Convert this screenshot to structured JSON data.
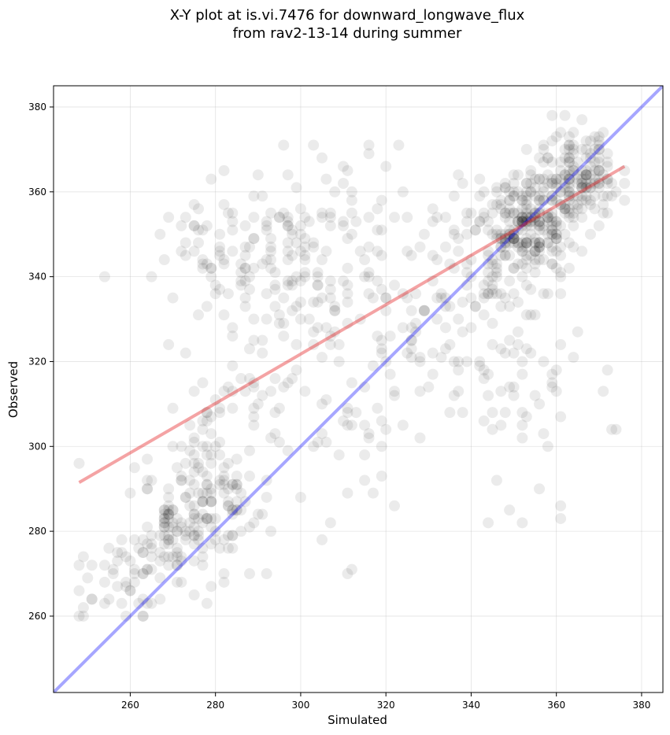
{
  "chart_data": {
    "type": "scatter",
    "title": "X-Y plot at is.vi.7476 for downward_longwave_flux",
    "subtitle": "from rav2-13-14 during summer",
    "xlabel": "Simulated",
    "ylabel": "Observed",
    "xlim": [
      242,
      385
    ],
    "ylim": [
      242,
      385
    ],
    "xticks": [
      260,
      280,
      300,
      320,
      340,
      360,
      380
    ],
    "yticks": [
      260,
      280,
      300,
      320,
      340,
      360,
      380
    ],
    "grid": true,
    "points_color": "#000000",
    "points_alpha": 0.08,
    "reference_line": {
      "color": "#0000ff",
      "alpha": 0.35,
      "from": [
        242,
        242
      ],
      "to": [
        385,
        385
      ]
    },
    "fit_line": {
      "color": "#e31a1c",
      "alpha": 0.4,
      "from": [
        248,
        291.5
      ],
      "to": [
        376,
        366
      ]
    },
    "point_clusters": [
      {
        "cx": 272,
        "cy": 280,
        "sx": 5,
        "sy": 6,
        "n": 110
      },
      {
        "cx": 280,
        "cy": 292,
        "sx": 6,
        "sy": 8,
        "n": 90
      },
      {
        "cx": 258,
        "cy": 270,
        "sx": 5,
        "sy": 5,
        "n": 40
      },
      {
        "cx": 282,
        "cy": 348,
        "sx": 10,
        "sy": 7,
        "n": 60
      },
      {
        "cx": 300,
        "cy": 345,
        "sx": 9,
        "sy": 12,
        "n": 80
      },
      {
        "cx": 290,
        "cy": 320,
        "sx": 10,
        "sy": 12,
        "n": 60
      },
      {
        "cx": 320,
        "cy": 345,
        "sx": 12,
        "sy": 12,
        "n": 70
      },
      {
        "cx": 335,
        "cy": 330,
        "sx": 10,
        "sy": 15,
        "n": 60
      },
      {
        "cx": 353,
        "cy": 352,
        "sx": 6,
        "sy": 7,
        "n": 260
      },
      {
        "cx": 365,
        "cy": 364,
        "sx": 5,
        "sy": 5,
        "n": 150
      },
      {
        "cx": 350,
        "cy": 320,
        "sx": 9,
        "sy": 14,
        "n": 60
      },
      {
        "cx": 310,
        "cy": 310,
        "sx": 12,
        "sy": 15,
        "n": 50
      }
    ],
    "outliers": [
      [
        248,
        260
      ],
      [
        249,
        262
      ],
      [
        248,
        266
      ],
      [
        248,
        272
      ],
      [
        248,
        296
      ],
      [
        251,
        264
      ],
      [
        254,
        263
      ],
      [
        263,
        264
      ],
      [
        265,
        263
      ],
      [
        344,
        282
      ],
      [
        352,
        282
      ],
      [
        361,
        283
      ],
      [
        361,
        286
      ],
      [
        356,
        290
      ],
      [
        346,
        292
      ],
      [
        358,
        300
      ],
      [
        352,
        302
      ],
      [
        371,
        313
      ],
      [
        317,
        289
      ],
      [
        305,
        278
      ],
      [
        292,
        270
      ],
      [
        288,
        270
      ],
      [
        282,
        270
      ],
      [
        303,
        371
      ],
      [
        323,
        371
      ],
      [
        316,
        369
      ],
      [
        300,
        288
      ],
      [
        297,
        299
      ]
    ]
  }
}
